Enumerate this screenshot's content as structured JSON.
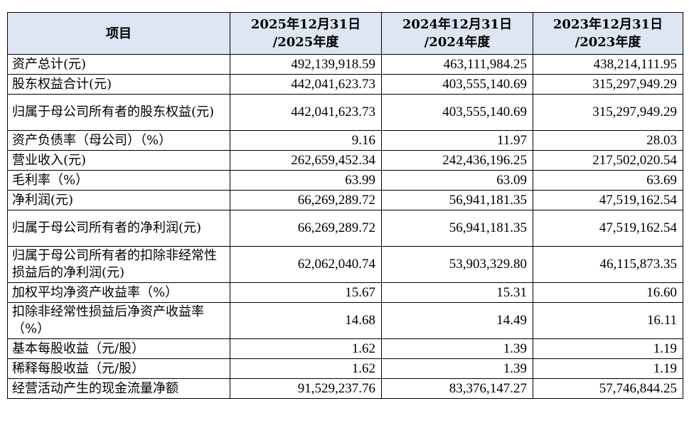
{
  "header": {
    "item": "项目",
    "periods": [
      {
        "line1": "2025年12月31日",
        "line2": "/2025年度"
      },
      {
        "line1": "2024年12月31日",
        "line2": "/2024年度"
      },
      {
        "line1": "2023年12月31日",
        "line2": "/2023年度"
      }
    ]
  },
  "rows": [
    {
      "label": "资产总计(元)",
      "values": [
        "492,139,918.59",
        "463,111,984.25",
        "438,214,111.95"
      ]
    },
    {
      "label": "股东权益合计(元)",
      "values": [
        "442,041,623.73",
        "403,555,140.69",
        "315,297,949.29"
      ]
    },
    {
      "label": "归属于母公司所有者的股东权益(元)",
      "values": [
        "442,041,623.73",
        "403,555,140.69",
        "315,297,949.29"
      ]
    },
    {
      "label": "资产负债率（母公司）（%）",
      "values": [
        "9.16",
        "11.97",
        "28.03"
      ]
    },
    {
      "label": "营业收入(元)",
      "values": [
        "262,659,452.34",
        "242,436,196.25",
        "217,502,020.54"
      ]
    },
    {
      "label": "毛利率（%）",
      "values": [
        "63.99",
        "63.09",
        "63.69"
      ]
    },
    {
      "label": "净利润(元)",
      "values": [
        "66,269,289.72",
        "56,941,181.35",
        "47,519,162.54"
      ]
    },
    {
      "label": "归属于母公司所有者的净利润(元)",
      "values": [
        "66,269,289.72",
        "56,941,181.35",
        "47,519,162.54"
      ]
    },
    {
      "label": "归属于母公司所有者的扣除非经常性损益后的净利润(元)",
      "values": [
        "62,062,040.74",
        "53,903,329.80",
        "46,115,873.35"
      ]
    },
    {
      "label": "加权平均净资产收益率（%）",
      "values": [
        "15.67",
        "15.31",
        "16.60"
      ]
    },
    {
      "label": "扣除非经常性损益后净资产收益率（%）",
      "values": [
        "14.68",
        "14.49",
        "16.11"
      ]
    },
    {
      "label": "基本每股收益（元/股）",
      "values": [
        "1.62",
        "1.39",
        "1.19"
      ]
    },
    {
      "label": "稀释每股收益（元/股）",
      "values": [
        "1.62",
        "1.39",
        "1.19"
      ]
    },
    {
      "label": "经营活动产生的现金流量净额",
      "values": [
        "91,529,237.76",
        "83,376,147.27",
        "57,746,844.25"
      ]
    }
  ]
}
